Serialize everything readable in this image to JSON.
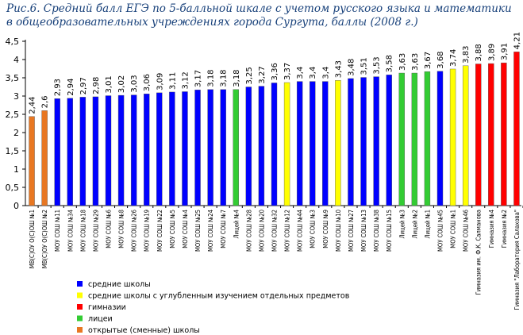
{
  "chart_data": {
    "type": "bar",
    "title": "Рис.6. Средний балл ЕГЭ по 5-балльной шкале с учетом русского языка и математики в общеобразовательных учреждениях города Сургута, баллы (2008 г.)",
    "xlabel": "",
    "ylabel": "",
    "ylim": [
      0,
      4.5
    ],
    "yticks": [
      "0",
      "0,5",
      "1",
      "1,5",
      "2",
      "2,5",
      "3",
      "3,5",
      "4",
      "4,5"
    ],
    "grid": false,
    "legend_position": "bottom-left",
    "groups": [
      {
        "key": "regular",
        "label": "средние школы",
        "color": "#0000ff"
      },
      {
        "key": "advanced",
        "label": "средние школы с углубленным изучением отдельных предметов",
        "color": "#ffff00"
      },
      {
        "key": "gymnasium",
        "label": "гимназии",
        "color": "#ff0000"
      },
      {
        "key": "lyceum",
        "label": "лицеи",
        "color": "#33cc33"
      },
      {
        "key": "evening",
        "label": "открытые (сменные) школы",
        "color": "#e87722"
      }
    ],
    "bars": [
      {
        "category": "МВ(С)ОУ О(С)ОШ №1",
        "value": 2.44,
        "label": "2,44",
        "group": "evening"
      },
      {
        "category": "МВ(С)ОУ О(С)ОШ №2",
        "value": 2.6,
        "label": "2,6",
        "group": "evening"
      },
      {
        "category": "МОУ СОШ №11",
        "value": 2.93,
        "label": "2,93",
        "group": "regular"
      },
      {
        "category": "МОУ СОШ №34",
        "value": 2.94,
        "label": "2,94",
        "group": "regular"
      },
      {
        "category": "МОУ СОШ №18",
        "value": 2.97,
        "label": "2,97",
        "group": "regular"
      },
      {
        "category": "МОУ СОШ №29",
        "value": 2.98,
        "label": "2,98",
        "group": "regular"
      },
      {
        "category": "МОУ СОШ №6",
        "value": 3.01,
        "label": "3,01",
        "group": "regular"
      },
      {
        "category": "МОУ СОШ №8",
        "value": 3.02,
        "label": "3,02",
        "group": "regular"
      },
      {
        "category": "МОУ СОШ №26",
        "value": 3.03,
        "label": "3,03",
        "group": "regular"
      },
      {
        "category": "МОУ СОШ №19",
        "value": 3.06,
        "label": "3,06",
        "group": "regular"
      },
      {
        "category": "МОУ СОШ №22",
        "value": 3.09,
        "label": "3,09",
        "group": "regular"
      },
      {
        "category": "МОУ СОШ №5",
        "value": 3.11,
        "label": "3,11",
        "group": "regular"
      },
      {
        "category": "МОУ СОШ №4",
        "value": 3.12,
        "label": "3,12",
        "group": "regular"
      },
      {
        "category": "МОУ СОШ №25",
        "value": 3.17,
        "label": "3,17",
        "group": "regular"
      },
      {
        "category": "МОУ СОШ №24",
        "value": 3.18,
        "label": "3,18",
        "group": "regular"
      },
      {
        "category": "МОУ СОШ №7",
        "value": 3.18,
        "label": "3,18",
        "group": "regular"
      },
      {
        "category": "Лицей №4",
        "value": 3.18,
        "label": "3,18",
        "group": "lyceum"
      },
      {
        "category": "МОУ СОШ №28",
        "value": 3.25,
        "label": "3,25",
        "group": "regular"
      },
      {
        "category": "МОУ СОШ №20",
        "value": 3.27,
        "label": "3,27",
        "group": "regular"
      },
      {
        "category": "МОУ СОШ №32",
        "value": 3.36,
        "label": "3,36",
        "group": "regular"
      },
      {
        "category": "МОУ СОШ №12",
        "value": 3.37,
        "label": "3,37",
        "group": "advanced"
      },
      {
        "category": "МОУ СОШ №44",
        "value": 3.4,
        "label": "3,4",
        "group": "regular"
      },
      {
        "category": "МОУ СОШ №3",
        "value": 3.4,
        "label": "3,4",
        "group": "regular"
      },
      {
        "category": "МОУ СОШ №9",
        "value": 3.4,
        "label": "3,4",
        "group": "regular"
      },
      {
        "category": "МОУ СОШ №10",
        "value": 3.43,
        "label": "3,43",
        "group": "advanced"
      },
      {
        "category": "МОУ СОШ №27",
        "value": 3.48,
        "label": "3,48",
        "group": "regular"
      },
      {
        "category": "МОУ СОШ №13",
        "value": 3.51,
        "label": "3,51",
        "group": "regular"
      },
      {
        "category": "МОУ СОШ №38",
        "value": 3.53,
        "label": "3,53",
        "group": "regular"
      },
      {
        "category": "МОУ СОШ №15",
        "value": 3.58,
        "label": "3,58",
        "group": "regular"
      },
      {
        "category": "Лицей №3",
        "value": 3.63,
        "label": "3,63",
        "group": "lyceum"
      },
      {
        "category": "Лицей №2",
        "value": 3.63,
        "label": "3,63",
        "group": "lyceum"
      },
      {
        "category": "Лицей №1",
        "value": 3.67,
        "label": "3,67",
        "group": "lyceum"
      },
      {
        "category": "МОУ СОШ №45",
        "value": 3.68,
        "label": "3,68",
        "group": "regular"
      },
      {
        "category": "МОУ СОШ №1",
        "value": 3.74,
        "label": "3,74",
        "group": "advanced"
      },
      {
        "category": "МОУ СОШ №46",
        "value": 3.83,
        "label": "3,83",
        "group": "advanced"
      },
      {
        "category": "Гимназия им. Ф.К. Салманова",
        "value": 3.88,
        "label": "3,88",
        "group": "gymnasium"
      },
      {
        "category": "Гимназия №4",
        "value": 3.89,
        "label": "3,89",
        "group": "gymnasium"
      },
      {
        "category": "Гимназия №2",
        "value": 3.91,
        "label": "3,91",
        "group": "gymnasium"
      },
      {
        "category": "Гимназия \"Лаборатория Салахова\"",
        "value": 4.21,
        "label": "4,21",
        "group": "gymnasium"
      }
    ]
  }
}
